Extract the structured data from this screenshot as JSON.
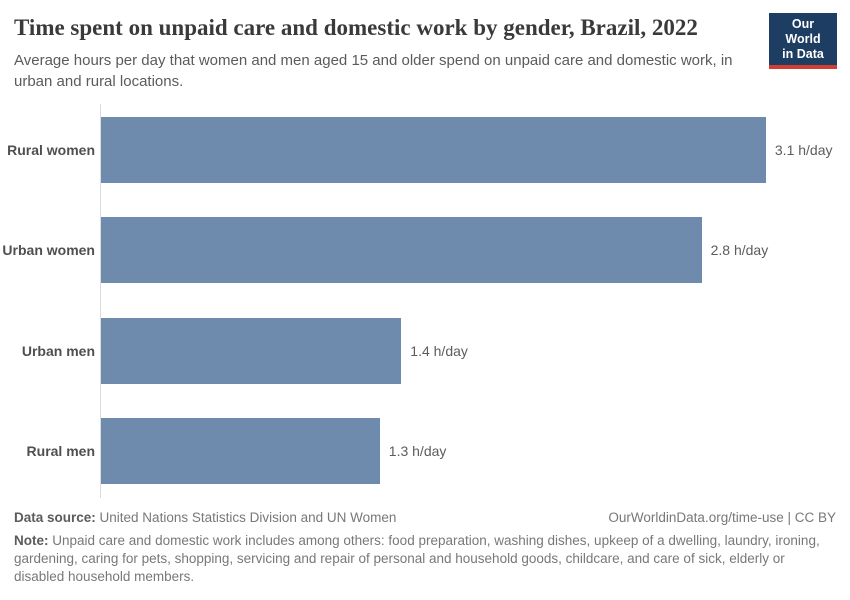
{
  "header": {
    "title": "Time spent on unpaid care and domestic work by gender, Brazil, 2022",
    "subtitle": "Average hours per day that women and men aged 15 and older spend on unpaid care and domestic work, in urban and rural locations.",
    "logo": {
      "line1": "Our World",
      "line2": "in Data"
    }
  },
  "brand": {
    "navy": "#1d3d63",
    "red": "#d13e32"
  },
  "chart_data": {
    "type": "bar",
    "orientation": "horizontal",
    "title": "Time spent on unpaid care and domestic work by gender, Brazil, 2022",
    "categories": [
      "Rural women",
      "Urban women",
      "Urban men",
      "Rural men"
    ],
    "values": [
      3.1,
      2.8,
      1.4,
      1.3
    ],
    "value_labels": [
      "3.1 h/day",
      "2.8 h/day",
      "1.4 h/day",
      "1.3 h/day"
    ],
    "unit": "h/day",
    "xlabel": "",
    "ylabel": "",
    "xlim": [
      0,
      3.45
    ],
    "grid": false,
    "legend": "none",
    "bar_color": "#6e8aac",
    "axis_line_color": "#dcdcdc"
  },
  "footer": {
    "datasource_label": "Data source:",
    "datasource_text": " United Nations Statistics Division and UN Women",
    "attribution": "OurWorldinData.org/time-use | CC BY",
    "note_label": "Note:",
    "note_text": " Unpaid care and domestic work includes among others: food preparation, washing dishes, upkeep of a dwelling, laundry, ironing, gardening, caring for pets, shopping, servicing and repair of personal and household goods, childcare, and care of sick, elderly or disabled household members."
  }
}
